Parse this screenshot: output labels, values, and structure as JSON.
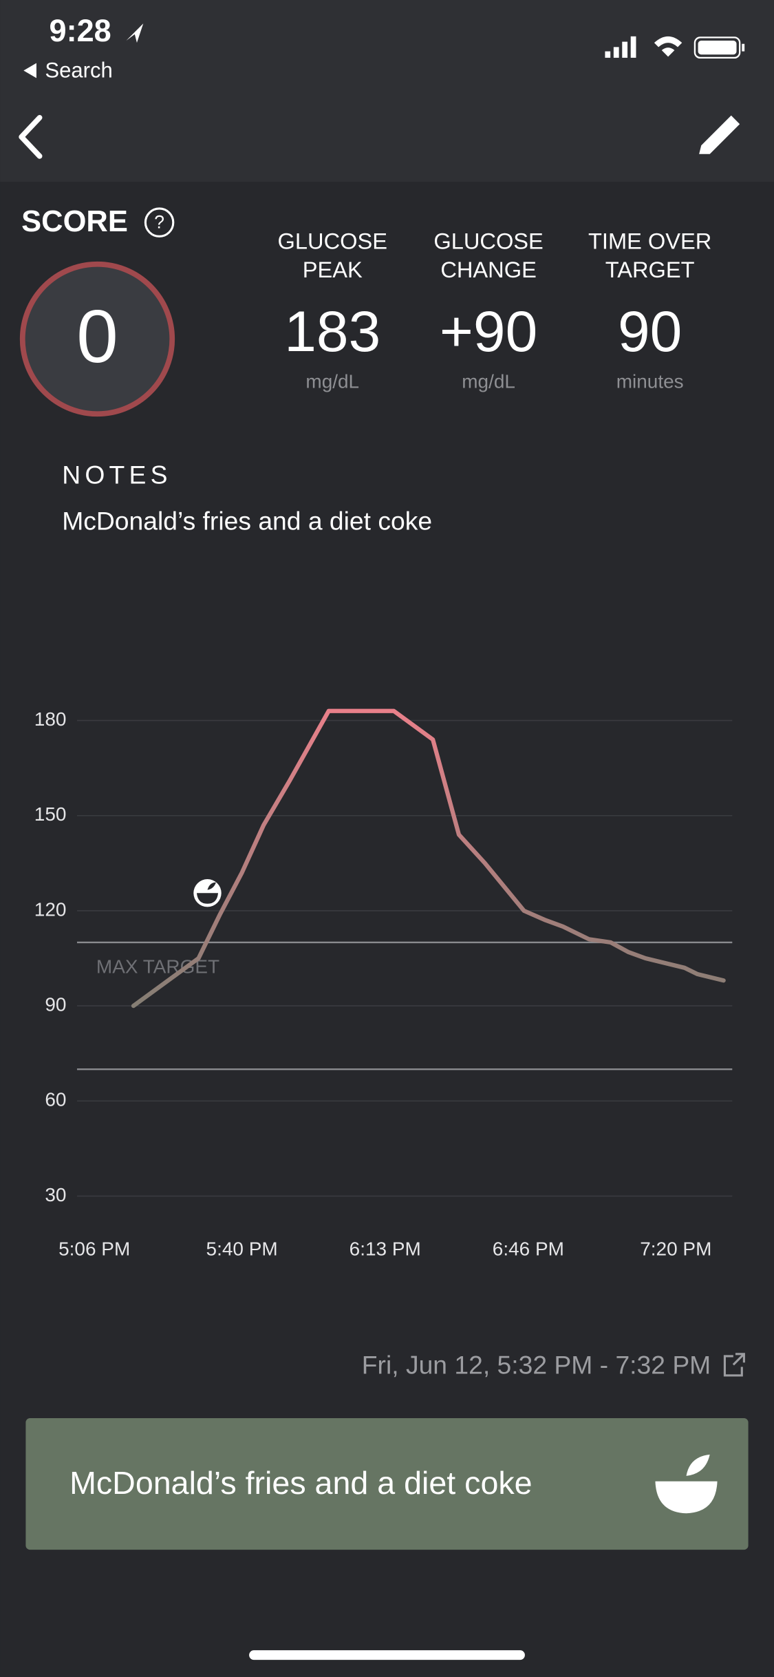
{
  "status_bar": {
    "time": "9:28",
    "back_app": "Search"
  },
  "score": {
    "label": "SCORE",
    "value": "0"
  },
  "metrics": [
    {
      "label": [
        "GLUCOSE",
        "PEAK"
      ],
      "value": "183",
      "unit": "mg/dL"
    },
    {
      "label": [
        "GLUCOSE",
        "CHANGE"
      ],
      "value": "+90",
      "unit": "mg/dL"
    },
    {
      "label": [
        "TIME OVER",
        "TARGET"
      ],
      "value": "90",
      "unit": "minutes"
    }
  ],
  "notes": {
    "heading": "NOTES",
    "text": "McDonald’s fries and a diet coke"
  },
  "chart_data": {
    "type": "line",
    "x": [
      "5:15 PM",
      "5:30 PM",
      "5:35 PM",
      "5:40 PM",
      "5:45 PM",
      "5:51 PM",
      "6:00 PM",
      "6:15 PM",
      "6:24 PM",
      "6:30 PM",
      "6:36 PM",
      "6:39 PM",
      "6:45 PM",
      "6:50 PM",
      "6:54 PM",
      "7:00 PM",
      "7:05 PM",
      "7:09 PM",
      "7:13 PM",
      "7:22 PM",
      "7:25 PM",
      "7:31 PM"
    ],
    "series": [
      {
        "values": [
          90,
          105,
          119,
          132,
          147,
          161,
          183,
          183,
          174,
          144,
          135,
          130,
          120,
          117,
          115,
          111,
          110,
          107,
          105,
          102,
          100,
          98
        ],
        "color": "#e8808a",
        "low_color": "#857e74"
      }
    ],
    "xlim": [
      "5:02 PM",
      "7:33 PM"
    ],
    "xticks": [
      "5:06 PM",
      "5:40 PM",
      "6:13 PM",
      "6:46 PM",
      "7:20 PM"
    ],
    "ylim": [
      20,
      190
    ],
    "yticks": [
      30,
      60,
      90,
      120,
      150,
      180
    ],
    "grid": true,
    "reference_lines": [
      {
        "value": 110,
        "label": "MAX TARGET"
      },
      {
        "value": 70
      }
    ]
  },
  "time_range": "Fri, Jun 12, 5:32 PM - 7:32 PM",
  "meal_card": {
    "text": "McDonald’s fries and a diet coke"
  }
}
